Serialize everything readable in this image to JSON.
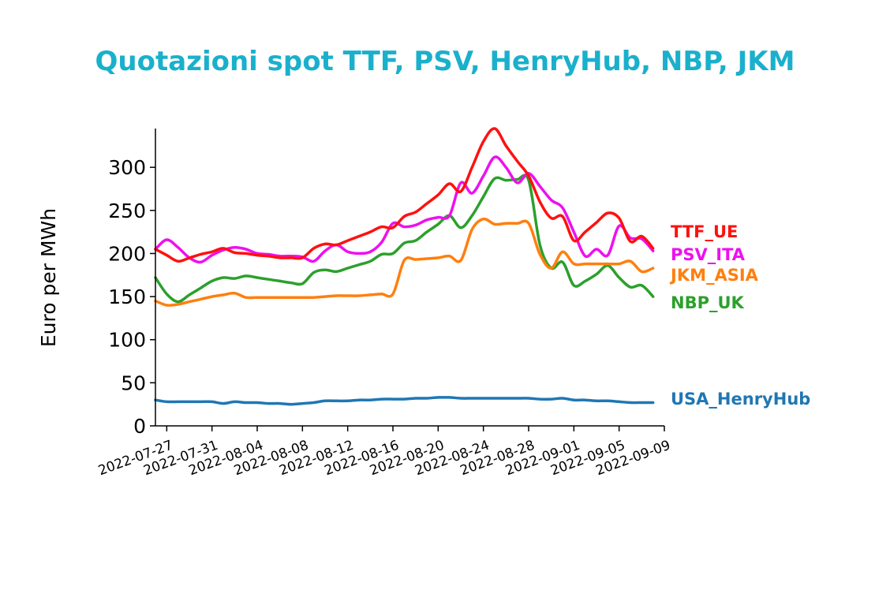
{
  "colors": {
    "title": "#1ab0cc",
    "TTF_UE": "#ff1010",
    "PSV_ITA": "#ee10ee",
    "JKM_ASIA": "#ff7f0e",
    "NBP_UK": "#2ca02c",
    "USA_HenryHub": "#1f77b4"
  },
  "chart_data": {
    "type": "line",
    "title": "Quotazioni spot TTF, PSV, HenryHub, NBP, JKM",
    "xlabel": "",
    "ylabel": "Euro per MWh",
    "ylim": [
      0,
      345
    ],
    "yticks": [
      0,
      50,
      100,
      150,
      200,
      250,
      300
    ],
    "ytick_labels": [
      "0",
      "50",
      "100",
      "150",
      "200",
      "250",
      "300"
    ],
    "xlim": [
      "2022-07-26",
      "2022-09-09"
    ],
    "xticks": [
      "2022-07-27",
      "2022-07-31",
      "2022-08-04",
      "2022-08-08",
      "2022-08-12",
      "2022-08-16",
      "2022-08-20",
      "2022-08-24",
      "2022-08-28",
      "2022-09-01",
      "2022-09-05",
      "2022-09-09"
    ],
    "grid": false,
    "legend": "right end of lines",
    "series": [
      {
        "name": "TTF_UE",
        "color_key": "TTF_UE",
        "x": [
          "2022-07-26",
          "2022-07-27",
          "2022-07-28",
          "2022-07-29",
          "2022-07-30",
          "2022-07-31",
          "2022-08-01",
          "2022-08-02",
          "2022-08-03",
          "2022-08-04",
          "2022-08-05",
          "2022-08-06",
          "2022-08-07",
          "2022-08-08",
          "2022-08-09",
          "2022-08-10",
          "2022-08-11",
          "2022-08-12",
          "2022-08-13",
          "2022-08-14",
          "2022-08-15",
          "2022-08-16",
          "2022-08-17",
          "2022-08-18",
          "2022-08-19",
          "2022-08-20",
          "2022-08-21",
          "2022-08-22",
          "2022-08-23",
          "2022-08-24",
          "2022-08-25",
          "2022-08-26",
          "2022-08-27",
          "2022-08-28",
          "2022-08-29",
          "2022-08-30",
          "2022-08-31",
          "2022-09-01",
          "2022-09-02",
          "2022-09-03",
          "2022-09-04",
          "2022-09-05",
          "2022-09-06",
          "2022-09-07",
          "2022-09-08"
        ],
        "y": [
          205,
          198,
          191,
          195,
          199,
          202,
          206,
          201,
          200,
          198,
          197,
          195,
          195,
          195,
          206,
          211,
          210,
          215,
          220,
          225,
          231,
          230,
          243,
          248,
          258,
          268,
          281,
          272,
          300,
          330,
          345,
          325,
          307,
          290,
          260,
          241,
          243,
          215,
          225,
          236,
          247,
          241,
          214,
          220,
          206
        ]
      },
      {
        "name": "PSV_ITA",
        "color_key": "PSV_ITA",
        "x": [
          "2022-07-26",
          "2022-07-27",
          "2022-07-28",
          "2022-07-29",
          "2022-07-30",
          "2022-07-31",
          "2022-08-01",
          "2022-08-02",
          "2022-08-03",
          "2022-08-04",
          "2022-08-05",
          "2022-08-06",
          "2022-08-07",
          "2022-08-08",
          "2022-08-09",
          "2022-08-10",
          "2022-08-11",
          "2022-08-12",
          "2022-08-13",
          "2022-08-14",
          "2022-08-15",
          "2022-08-16",
          "2022-08-17",
          "2022-08-18",
          "2022-08-19",
          "2022-08-20",
          "2022-08-21",
          "2022-08-22",
          "2022-08-23",
          "2022-08-24",
          "2022-08-25",
          "2022-08-26",
          "2022-08-27",
          "2022-08-28",
          "2022-08-29",
          "2022-08-30",
          "2022-08-31",
          "2022-09-01",
          "2022-09-02",
          "2022-09-03",
          "2022-09-04",
          "2022-09-05",
          "2022-09-06",
          "2022-09-07",
          "2022-09-08"
        ],
        "y": [
          205,
          216,
          207,
          195,
          190,
          198,
          204,
          207,
          205,
          200,
          199,
          197,
          197,
          196,
          191,
          203,
          210,
          202,
          200,
          202,
          213,
          235,
          231,
          233,
          239,
          242,
          244,
          282,
          270,
          290,
          312,
          300,
          282,
          293,
          278,
          262,
          253,
          225,
          197,
          205,
          198,
          232,
          218,
          217,
          203
        ]
      },
      {
        "name": "JKM_ASIA",
        "color_key": "JKM_ASIA",
        "x": [
          "2022-07-26",
          "2022-07-27",
          "2022-07-28",
          "2022-07-29",
          "2022-07-30",
          "2022-07-31",
          "2022-08-01",
          "2022-08-02",
          "2022-08-03",
          "2022-08-04",
          "2022-08-05",
          "2022-08-06",
          "2022-08-07",
          "2022-08-08",
          "2022-08-09",
          "2022-08-10",
          "2022-08-11",
          "2022-08-12",
          "2022-08-13",
          "2022-08-14",
          "2022-08-15",
          "2022-08-16",
          "2022-08-17",
          "2022-08-18",
          "2022-08-19",
          "2022-08-20",
          "2022-08-21",
          "2022-08-22",
          "2022-08-23",
          "2022-08-24",
          "2022-08-25",
          "2022-08-26",
          "2022-08-27",
          "2022-08-28",
          "2022-08-29",
          "2022-08-30",
          "2022-08-31",
          "2022-09-01",
          "2022-09-02",
          "2022-09-03",
          "2022-09-04",
          "2022-09-05",
          "2022-09-06",
          "2022-09-07",
          "2022-09-08"
        ],
        "y": [
          145,
          140,
          141,
          144,
          147,
          150,
          152,
          154,
          149,
          149,
          149,
          149,
          149,
          149,
          149,
          150,
          151,
          151,
          151,
          152,
          153,
          153,
          192,
          193,
          194,
          195,
          197,
          192,
          228,
          240,
          234,
          235,
          235,
          235,
          199,
          183,
          202,
          188,
          188,
          188,
          188,
          188,
          191,
          179,
          183
        ]
      },
      {
        "name": "NBP_UK",
        "color_key": "NBP_UK",
        "x": [
          "2022-07-26",
          "2022-07-27",
          "2022-07-28",
          "2022-07-29",
          "2022-07-30",
          "2022-07-31",
          "2022-08-01",
          "2022-08-02",
          "2022-08-03",
          "2022-08-04",
          "2022-08-05",
          "2022-08-06",
          "2022-08-07",
          "2022-08-08",
          "2022-08-09",
          "2022-08-10",
          "2022-08-11",
          "2022-08-12",
          "2022-08-13",
          "2022-08-14",
          "2022-08-15",
          "2022-08-16",
          "2022-08-17",
          "2022-08-18",
          "2022-08-19",
          "2022-08-20",
          "2022-08-21",
          "2022-08-22",
          "2022-08-23",
          "2022-08-24",
          "2022-08-25",
          "2022-08-26",
          "2022-08-27",
          "2022-08-28",
          "2022-08-29",
          "2022-08-30",
          "2022-08-31",
          "2022-09-01",
          "2022-09-02",
          "2022-09-03",
          "2022-09-04",
          "2022-09-05",
          "2022-09-06",
          "2022-09-07",
          "2022-09-08"
        ],
        "y": [
          172,
          153,
          144,
          152,
          160,
          168,
          172,
          171,
          174,
          172,
          170,
          168,
          166,
          165,
          178,
          181,
          179,
          183,
          187,
          191,
          199,
          200,
          212,
          215,
          225,
          234,
          244,
          230,
          244,
          266,
          287,
          285,
          286,
          285,
          210,
          183,
          190,
          163,
          168,
          176,
          186,
          172,
          161,
          163,
          150
        ]
      },
      {
        "name": "USA_HenryHub",
        "color_key": "USA_HenryHub",
        "x": [
          "2022-07-26",
          "2022-07-27",
          "2022-07-28",
          "2022-07-29",
          "2022-07-30",
          "2022-07-31",
          "2022-08-01",
          "2022-08-02",
          "2022-08-03",
          "2022-08-04",
          "2022-08-05",
          "2022-08-06",
          "2022-08-07",
          "2022-08-08",
          "2022-08-09",
          "2022-08-10",
          "2022-08-11",
          "2022-08-12",
          "2022-08-13",
          "2022-08-14",
          "2022-08-15",
          "2022-08-16",
          "2022-08-17",
          "2022-08-18",
          "2022-08-19",
          "2022-08-20",
          "2022-08-21",
          "2022-08-22",
          "2022-08-23",
          "2022-08-24",
          "2022-08-25",
          "2022-08-26",
          "2022-08-27",
          "2022-08-28",
          "2022-08-29",
          "2022-08-30",
          "2022-08-31",
          "2022-09-01",
          "2022-09-02",
          "2022-09-03",
          "2022-09-04",
          "2022-09-05",
          "2022-09-06",
          "2022-09-07",
          "2022-09-08"
        ],
        "y": [
          30,
          28,
          28,
          28,
          28,
          28,
          26,
          28,
          27,
          27,
          26,
          26,
          25,
          26,
          27,
          29,
          29,
          29,
          30,
          30,
          31,
          31,
          31,
          32,
          32,
          33,
          33,
          32,
          32,
          32,
          32,
          32,
          32,
          32,
          31,
          31,
          32,
          30,
          30,
          29,
          29,
          28,
          27,
          27,
          27
        ]
      }
    ]
  }
}
